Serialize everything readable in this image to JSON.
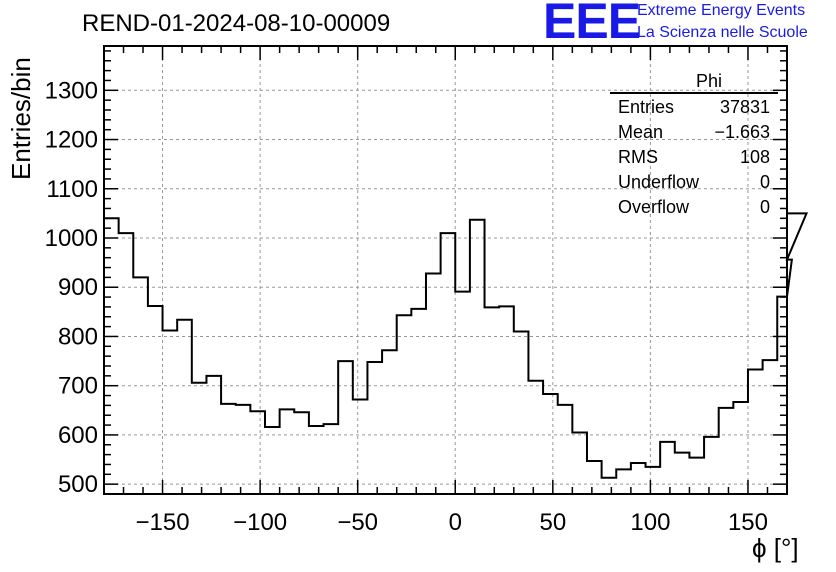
{
  "header": {
    "title": "REND-01-2024-08-10-00009",
    "logo": "EEE",
    "tagline_1": "Extreme Energy Events",
    "tagline_2": "La Scienza nelle Scuole"
  },
  "stats": {
    "name": "Phi",
    "rows": [
      {
        "label": "Entries",
        "value": "37831"
      },
      {
        "label": "Mean",
        "value": "−1.663"
      },
      {
        "label": "RMS",
        "value": "108"
      },
      {
        "label": "Underflow",
        "value": "0"
      },
      {
        "label": "Overflow",
        "value": "0"
      }
    ]
  },
  "chart_data": {
    "type": "histogram",
    "xlabel": "ϕ [°]",
    "ylabel": "Entries/bin",
    "xlim": [
      -180,
      170
    ],
    "ylim": [
      480,
      1390
    ],
    "grid": true,
    "line_color": "#000000",
    "x_ticks": [
      -150,
      -100,
      -50,
      0,
      50,
      100,
      150
    ],
    "x_tick_labels": [
      "−150",
      "−100",
      "−50",
      "0",
      "50",
      "100",
      "150"
    ],
    "y_ticks": [
      500,
      600,
      700,
      800,
      900,
      1000,
      1100,
      1200,
      1300
    ],
    "y_tick_labels": [
      "500",
      "600",
      "700",
      "800",
      "900",
      "1000",
      "1100",
      "1200",
      "1300"
    ],
    "bin_width": 7.5,
    "bin_edges_start": -180,
    "values": [
      1040,
      1010,
      920,
      862,
      812,
      834,
      706,
      720,
      663,
      661,
      648,
      616,
      652,
      646,
      618,
      622,
      750,
      672,
      748,
      772,
      843,
      856,
      928,
      1010,
      891,
      1037,
      859,
      861,
      810,
      710,
      683,
      661,
      605,
      547,
      513,
      530,
      543,
      535,
      586,
      564,
      554,
      596,
      655,
      667,
      733,
      752,
      881,
      956,
      1050
    ]
  }
}
